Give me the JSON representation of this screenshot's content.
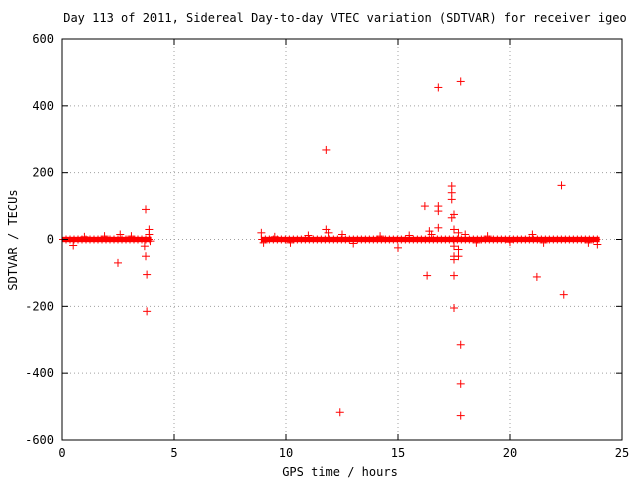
{
  "chart_data": {
    "type": "scatter",
    "title": "Day 113 of 2011, Sidereal Day-to-day VTEC variation (SDTVAR) for receiver igeo",
    "xlabel": "GPS time / hours",
    "ylabel": "SDTVAR / TECUs",
    "xlim": [
      0,
      25
    ],
    "ylim": [
      -600,
      600
    ],
    "xticks": [
      0,
      5,
      10,
      15,
      20,
      25
    ],
    "yticks": [
      -600,
      -400,
      -200,
      0,
      200,
      400,
      600
    ],
    "grid": true,
    "legend": "none",
    "color": "#ff0000",
    "dense_bands": [
      {
        "x_start": 0.0,
        "x_end": 4.0,
        "y_low": -8,
        "y_high": 8
      },
      {
        "x_start": 8.9,
        "x_end": 24.0,
        "y_low": -8,
        "y_high": 8
      }
    ],
    "points": [
      {
        "x": 0.5,
        "y": -18
      },
      {
        "x": 1.0,
        "y": 8
      },
      {
        "x": 1.9,
        "y": 10
      },
      {
        "x": 2.5,
        "y": -70
      },
      {
        "x": 2.6,
        "y": 15
      },
      {
        "x": 3.1,
        "y": 10
      },
      {
        "x": 3.7,
        "y": -20
      },
      {
        "x": 3.75,
        "y": -50
      },
      {
        "x": 3.75,
        "y": 90
      },
      {
        "x": 3.8,
        "y": -105
      },
      {
        "x": 3.8,
        "y": -215
      },
      {
        "x": 3.9,
        "y": 30
      },
      {
        "x": 3.9,
        "y": 15
      },
      {
        "x": 3.95,
        "y": -5
      },
      {
        "x": 8.9,
        "y": 20
      },
      {
        "x": 9.0,
        "y": -10
      },
      {
        "x": 9.5,
        "y": 8
      },
      {
        "x": 10.2,
        "y": -10
      },
      {
        "x": 11.0,
        "y": 12
      },
      {
        "x": 11.8,
        "y": 268
      },
      {
        "x": 11.8,
        "y": 30
      },
      {
        "x": 11.9,
        "y": 20
      },
      {
        "x": 12.4,
        "y": -517
      },
      {
        "x": 12.5,
        "y": 15
      },
      {
        "x": 13.0,
        "y": -12
      },
      {
        "x": 14.2,
        "y": 10
      },
      {
        "x": 15.0,
        "y": -25
      },
      {
        "x": 15.5,
        "y": 12
      },
      {
        "x": 16.2,
        "y": 100
      },
      {
        "x": 16.3,
        "y": -108
      },
      {
        "x": 16.4,
        "y": 25
      },
      {
        "x": 16.5,
        "y": 15
      },
      {
        "x": 16.8,
        "y": 100
      },
      {
        "x": 16.8,
        "y": 85
      },
      {
        "x": 16.8,
        "y": 35
      },
      {
        "x": 16.8,
        "y": 455
      },
      {
        "x": 17.4,
        "y": 160
      },
      {
        "x": 17.4,
        "y": 140
      },
      {
        "x": 17.4,
        "y": 120
      },
      {
        "x": 17.5,
        "y": 75
      },
      {
        "x": 17.4,
        "y": 65
      },
      {
        "x": 17.5,
        "y": 30
      },
      {
        "x": 17.5,
        "y": -20
      },
      {
        "x": 17.5,
        "y": -50
      },
      {
        "x": 17.5,
        "y": -60
      },
      {
        "x": 17.5,
        "y": -108
      },
      {
        "x": 17.5,
        "y": -205
      },
      {
        "x": 17.7,
        "y": 20
      },
      {
        "x": 17.7,
        "y": -30
      },
      {
        "x": 17.7,
        "y": -50
      },
      {
        "x": 17.8,
        "y": -315
      },
      {
        "x": 17.8,
        "y": -432
      },
      {
        "x": 17.8,
        "y": -527
      },
      {
        "x": 17.8,
        "y": 473
      },
      {
        "x": 18.0,
        "y": 15
      },
      {
        "x": 18.5,
        "y": -10
      },
      {
        "x": 19.0,
        "y": 10
      },
      {
        "x": 20.0,
        "y": -8
      },
      {
        "x": 21.0,
        "y": 15
      },
      {
        "x": 21.2,
        "y": -112
      },
      {
        "x": 21.5,
        "y": -10
      },
      {
        "x": 22.3,
        "y": 162
      },
      {
        "x": 22.4,
        "y": -165
      },
      {
        "x": 23.5,
        "y": -10
      },
      {
        "x": 23.9,
        "y": -15
      }
    ]
  }
}
